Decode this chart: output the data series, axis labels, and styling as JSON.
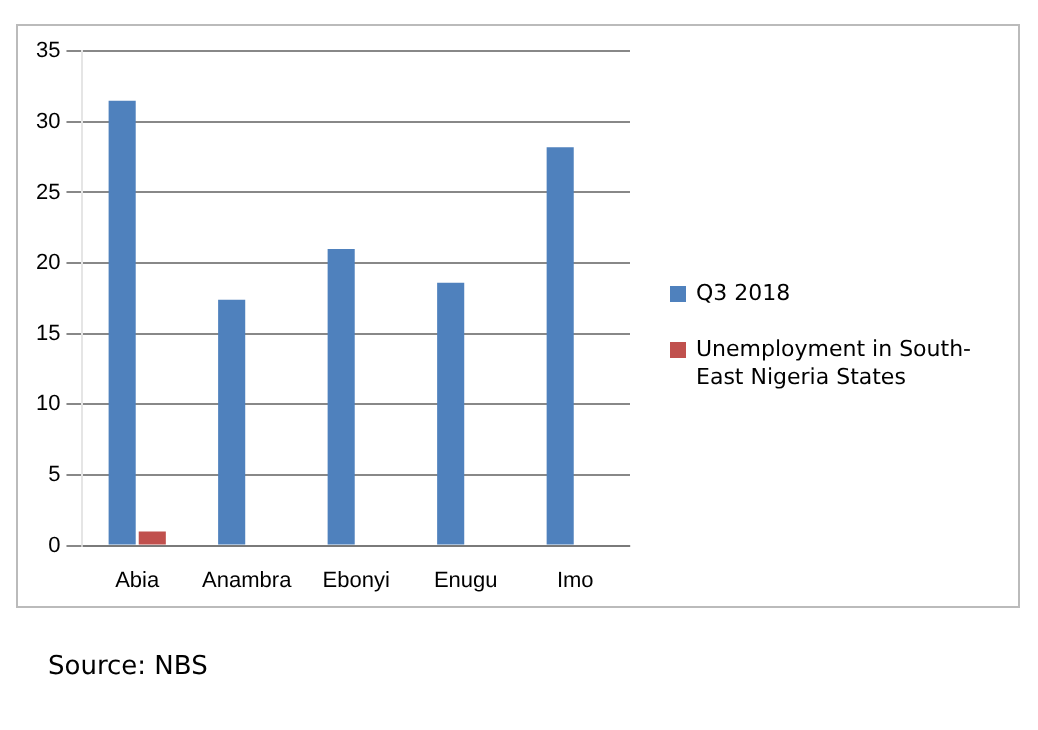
{
  "chart_data": {
    "type": "bar",
    "categories": [
      "Abia",
      "Anambra",
      "Ebonyi",
      "Enugu",
      "Imo"
    ],
    "series": [
      {
        "name": "Q3 2018",
        "color": "#4f81bd",
        "values": [
          31.5,
          17.4,
          21.0,
          18.6,
          28.2
        ]
      },
      {
        "name": "Unemployment in South-East Nigeria States",
        "color": "#c0504d",
        "values": [
          1.0,
          null,
          null,
          null,
          null
        ]
      }
    ],
    "ylim": [
      0,
      35
    ],
    "yticks": [
      0,
      5,
      10,
      15,
      20,
      25,
      30,
      35
    ],
    "grid": "y",
    "legend": "right",
    "annotations": [
      "Source: NBS"
    ]
  }
}
